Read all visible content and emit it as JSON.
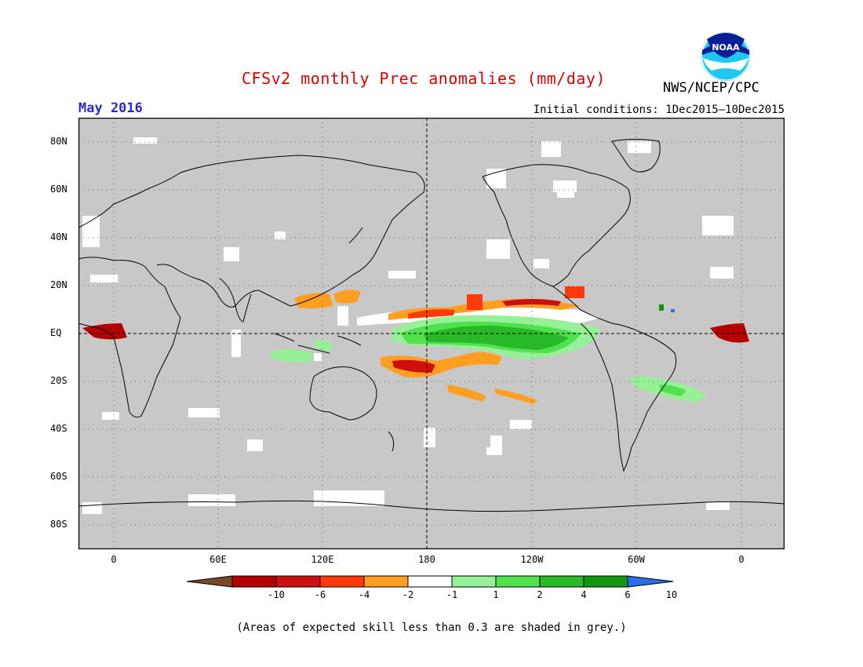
{
  "title": "CFSv2 monthly Prec anomalies (mm/day)",
  "valid_month": "May 2016",
  "initial_conditions": "Initial conditions: 1Dec2015–10Dec2015",
  "agency": "NWS/NCEP/CPC",
  "logo_text": "NOAA",
  "footnote": "(Areas of expected skill less than 0.3 are shaded in grey.)",
  "colors": {
    "title": "#dd0000",
    "month": "#2a2acc",
    "land_mask": "#c8c8c8",
    "coastline": "#000000"
  },
  "axes": {
    "lat_labels": [
      "80N",
      "60N",
      "40N",
      "20N",
      "EQ",
      "20S",
      "40S",
      "60S",
      "80S"
    ],
    "lon_labels": [
      "0",
      "60E",
      "120E",
      "180",
      "120W",
      "60W",
      "0"
    ]
  },
  "colorbar": {
    "tick_labels": [
      "-10",
      "-6",
      "-4",
      "-2",
      "-1",
      "1",
      "2",
      "4",
      "6",
      "10"
    ],
    "colors": [
      "#7a4a28",
      "#b40000",
      "#cc1010",
      "#ff3a0a",
      "#ff9e20",
      "#ffffff",
      "#96f096",
      "#50e050",
      "#28b828",
      "#129612",
      "#2a6ef0"
    ]
  },
  "map_features": {
    "equatorial_pacific_wet_anomaly": "green",
    "itcz_dry_band": "orange-red",
    "greenwich_gulf_of_guinea_dry": "dark red"
  }
}
